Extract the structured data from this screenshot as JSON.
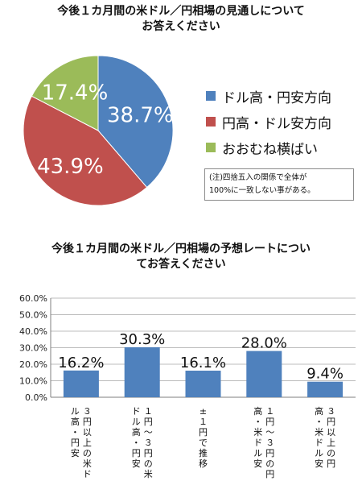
{
  "chart_data": [
    {
      "type": "pie",
      "title": [
        "今後１カ月間の米ドル／円相場の見通しについて",
        "お答えください"
      ],
      "categories": [
        "ドル高・円安方向",
        "円高・ドル安方向",
        "おおむね横ばい"
      ],
      "values": [
        38.7,
        43.9,
        17.4
      ],
      "value_labels": [
        "38.7%",
        "43.9%",
        "17.4%"
      ],
      "colors": [
        "#4f81bd",
        "#c0504d",
        "#9bbb59"
      ],
      "legend_position": "right",
      "note": [
        "(注)四捨五入の関係で全体が",
        "100%に一致しない事がある。"
      ]
    },
    {
      "type": "bar",
      "title": [
        "今後１カ月間の米ドル／円相場の予想レートについ",
        "てお答えください"
      ],
      "categories": [
        "3円以上の米ドル高・円安",
        "1円~3円の米ドル高・円安",
        "±1円で推移",
        "1円~3円の円高・米ドル安",
        "3円以上の円高・米ドル安"
      ],
      "category_label_lines": [
        [
          "３円以上の米ド",
          "ル高・円安"
        ],
        [
          "１円～３円の米",
          "ドル高・円安"
        ],
        [
          "±１円で推移"
        ],
        [
          "１円～３円の円",
          "高・米ドル安"
        ],
        [
          "３円以上の円",
          "高・米ドル安"
        ]
      ],
      "values": [
        16.2,
        30.3,
        16.1,
        28.0,
        9.4
      ],
      "value_labels": [
        "16.2%",
        "30.3%",
        "16.1%",
        "28.0%",
        "9.4%"
      ],
      "ylim": [
        0,
        60
      ],
      "yticks": [
        "0.0%",
        "10.0%",
        "20.0%",
        "30.0%",
        "40.0%",
        "50.0%",
        "60.0%"
      ],
      "grid": true,
      "color": "#4f81bd"
    }
  ]
}
